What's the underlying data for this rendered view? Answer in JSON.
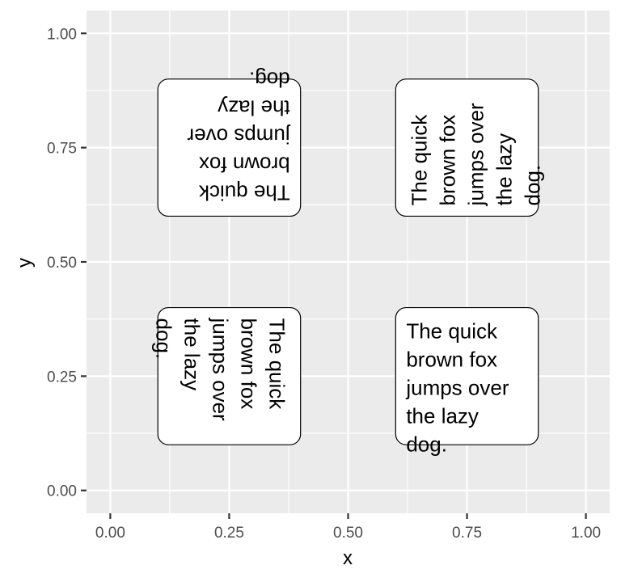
{
  "chart_data": {
    "type": "scatter",
    "xlabel": "x",
    "ylabel": "y",
    "xlim": [
      -0.05,
      1.05
    ],
    "ylim": [
      -0.05,
      1.05
    ],
    "x_ticks": [
      0,
      0.25,
      0.5,
      0.75,
      1
    ],
    "y_ticks": [
      0,
      0.25,
      0.5,
      0.75,
      1
    ],
    "x_tick_labels": [
      "0.00",
      "0.25",
      "0.50",
      "0.75",
      "1.00"
    ],
    "y_tick_labels": [
      "0.00",
      "0.25",
      "0.50",
      "0.75",
      "1.00"
    ],
    "grid": true,
    "text_boxes": [
      {
        "xmin": 0.6,
        "xmax": 0.9,
        "ymin": 0.1,
        "ymax": 0.4,
        "rotation": 0,
        "lines": [
          "The quick",
          "brown fox",
          "jumps over",
          "the lazy",
          "dog."
        ]
      },
      {
        "xmin": 0.1,
        "xmax": 0.4,
        "ymin": 0.1,
        "ymax": 0.4,
        "rotation": 270,
        "lines": [
          "The quick",
          "brown fox",
          "jumps over",
          "the lazy",
          "dog."
        ]
      },
      {
        "xmin": 0.1,
        "xmax": 0.4,
        "ymin": 0.6,
        "ymax": 0.9,
        "rotation": 180,
        "lines": [
          "The quick",
          "brown fox",
          "jumps over",
          "the lazy",
          "dog."
        ]
      },
      {
        "xmin": 0.6,
        "xmax": 0.9,
        "ymin": 0.6,
        "ymax": 0.9,
        "rotation": 90,
        "lines": [
          "The quick",
          "brown fox",
          "jumps over",
          "the lazy",
          "dog."
        ]
      }
    ]
  }
}
